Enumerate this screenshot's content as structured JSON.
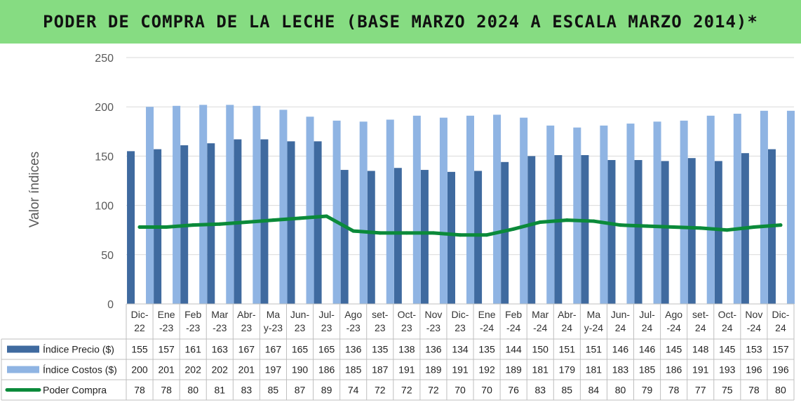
{
  "title": "PODER DE COMPRA DE LA LECHE (BASE MARZO 2024 A ESCALA MARZO 2014)*",
  "chart_data": {
    "type": "bar",
    "title": "PODER DE COMPRA DE LA LECHE (BASE MARZO 2024 A ESCALA MARZO 2014)*",
    "ylabel": "Valor índices",
    "xlabel": "",
    "ylim": [
      0,
      250
    ],
    "yticks": [
      0,
      50,
      100,
      150,
      200,
      250
    ],
    "grid": true,
    "legend": "data-table-bottom",
    "categories": [
      [
        "Dic-",
        "22"
      ],
      [
        "Ene",
        "-23"
      ],
      [
        "Feb",
        "-23"
      ],
      [
        "Mar",
        "-23"
      ],
      [
        "Abr-",
        "23"
      ],
      [
        "Ma",
        "y-23"
      ],
      [
        "Jun-",
        "23"
      ],
      [
        "Jul-",
        "23"
      ],
      [
        "Ago",
        "-23"
      ],
      [
        "set-",
        "23"
      ],
      [
        "Oct-",
        "23"
      ],
      [
        "Nov",
        "-23"
      ],
      [
        "Dic-",
        "23"
      ],
      [
        "Ene",
        "-24"
      ],
      [
        "Feb",
        "-24"
      ],
      [
        "Mar",
        "-24"
      ],
      [
        "Abr-",
        "24"
      ],
      [
        "Ma",
        "y-24"
      ],
      [
        "Jun-",
        "24"
      ],
      [
        "Jul-",
        "24"
      ],
      [
        "Ago",
        "-24"
      ],
      [
        "set-",
        "24"
      ],
      [
        "Oct-",
        "24"
      ],
      [
        "Nov",
        "-24"
      ],
      [
        "Dic-",
        "24"
      ]
    ],
    "series": [
      {
        "name": "Índice Precio ($)",
        "kind": "bar",
        "color": "#3f6a9f",
        "values": [
          155,
          157,
          161,
          163,
          167,
          167,
          165,
          165,
          136,
          135,
          138,
          136,
          134,
          135,
          144,
          150,
          151,
          151,
          146,
          146,
          145,
          148,
          145,
          153,
          157
        ]
      },
      {
        "name": "Índice Costos ($)",
        "kind": "bar",
        "color": "#8fb4e3",
        "values": [
          200,
          201,
          202,
          202,
          201,
          197,
          190,
          186,
          185,
          187,
          191,
          189,
          191,
          192,
          189,
          181,
          179,
          181,
          183,
          185,
          186,
          191,
          193,
          196,
          196
        ]
      },
      {
        "name": "Poder Compra",
        "kind": "line",
        "color": "#0b8a3a",
        "values": [
          78,
          78,
          80,
          81,
          83,
          85,
          87,
          89,
          74,
          72,
          72,
          72,
          70,
          70,
          76,
          83,
          85,
          84,
          80,
          79,
          78,
          77,
          75,
          78,
          80
        ]
      }
    ]
  }
}
